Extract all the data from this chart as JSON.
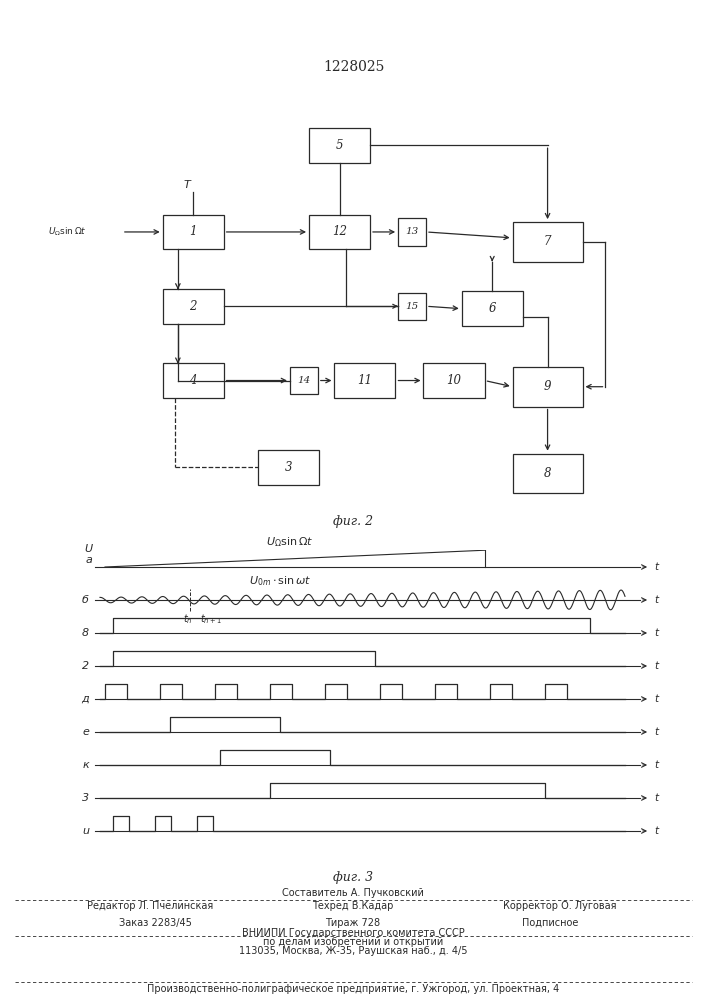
{
  "title": "1228025",
  "fig2_caption": "фиг. 2",
  "fig3_caption": "фиг. 3",
  "line_color": "#2a2a2a",
  "waveform_labels": [
    "a",
    "б",
    "8",
    "2",
    "д",
    "e",
    "к",
    "3",
    "u"
  ]
}
